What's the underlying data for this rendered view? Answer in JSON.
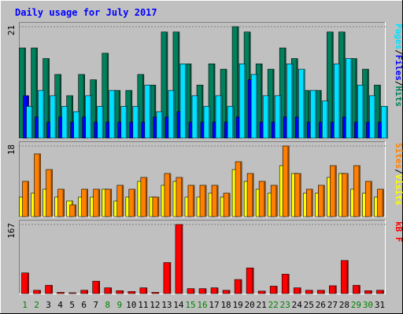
{
  "title": "Daily usage for July 2017",
  "chart_data": [
    {
      "type": "bar",
      "panel": "hits-files-pages",
      "y_max_label": "21",
      "ylim": [
        0,
        21
      ],
      "categories": [
        "1",
        "2",
        "3",
        "4",
        "5",
        "6",
        "7",
        "8",
        "9",
        "10",
        "11",
        "12",
        "13",
        "14",
        "15",
        "16",
        "17",
        "18",
        "19",
        "20",
        "21",
        "22",
        "23",
        "24",
        "25",
        "26",
        "27",
        "28",
        "29",
        "30",
        "31"
      ],
      "legend": [
        {
          "text": "Hits",
          "color": "#00805c"
        },
        {
          "text": "/",
          "color": "#000000"
        },
        {
          "text": "Files",
          "color": "#0000ff"
        },
        {
          "text": "/",
          "color": "#000000"
        },
        {
          "text": "Pages",
          "color": "#00e0ff"
        }
      ],
      "series": [
        {
          "name": "Hits",
          "color": "#00805c",
          "values": [
            17,
            17,
            15,
            12,
            8,
            12,
            11,
            16,
            9,
            9,
            12,
            10,
            20,
            20,
            14,
            10,
            14,
            13,
            21,
            20,
            14,
            13,
            17,
            15,
            9,
            9,
            20,
            20,
            15,
            13,
            10
          ]
        },
        {
          "name": "Files",
          "color": "#0000ff",
          "values": [
            8,
            4,
            3,
            4,
            3,
            4,
            3,
            3,
            3,
            3,
            3,
            4,
            4,
            5,
            3,
            3,
            3,
            3,
            4,
            11,
            3,
            3,
            4,
            4,
            3,
            3,
            3,
            4,
            3,
            3,
            3
          ]
        },
        {
          "name": "Pages",
          "color": "#00e0ff",
          "values": [
            6,
            9,
            8,
            6,
            5,
            8,
            6,
            9,
            6,
            6,
            10,
            5,
            9,
            14,
            8,
            6,
            8,
            6,
            14,
            12,
            8,
            8,
            14,
            13,
            9,
            7,
            14,
            15,
            10,
            8,
            6
          ]
        }
      ]
    },
    {
      "type": "bar",
      "panel": "visits-sites",
      "y_max_label": "18",
      "ylim": [
        0,
        18
      ],
      "legend": [
        {
          "text": "Visits",
          "color": "#ffff00"
        },
        {
          "text": "/",
          "color": "#000000"
        },
        {
          "text": "Sites",
          "color": "#ff8000"
        }
      ],
      "series": [
        {
          "name": "Visits",
          "color": "#ffff00",
          "values": [
            5,
            6,
            7,
            5,
            4,
            5,
            5,
            7,
            4,
            5,
            9,
            5,
            8,
            9,
            5,
            5,
            6,
            5,
            12,
            9,
            7,
            6,
            13,
            11,
            6,
            6,
            10,
            11,
            7,
            6,
            5
          ]
        },
        {
          "name": "Sites",
          "color": "#ff8000",
          "values": [
            9,
            16,
            12,
            7,
            3,
            7,
            7,
            7,
            8,
            7,
            10,
            5,
            11,
            10,
            8,
            8,
            8,
            6,
            14,
            11,
            9,
            8,
            18,
            11,
            7,
            8,
            13,
            11,
            13,
            9,
            7
          ]
        }
      ]
    },
    {
      "type": "bar",
      "panel": "kbytes",
      "y_max_label": "167",
      "ylim": [
        0,
        167
      ],
      "legend": [
        {
          "text": "KBytes",
          "display": "kB F",
          "color": "#ff0000"
        }
      ],
      "series": [
        {
          "name": "KBytes",
          "color": "#ff0000",
          "values": [
            50,
            8,
            20,
            3,
            2,
            8,
            30,
            14,
            7,
            5,
            14,
            3,
            75,
            167,
            12,
            12,
            14,
            8,
            34,
            62,
            6,
            18,
            47,
            14,
            8,
            8,
            19,
            80,
            20,
            7,
            8
          ]
        }
      ]
    }
  ]
}
